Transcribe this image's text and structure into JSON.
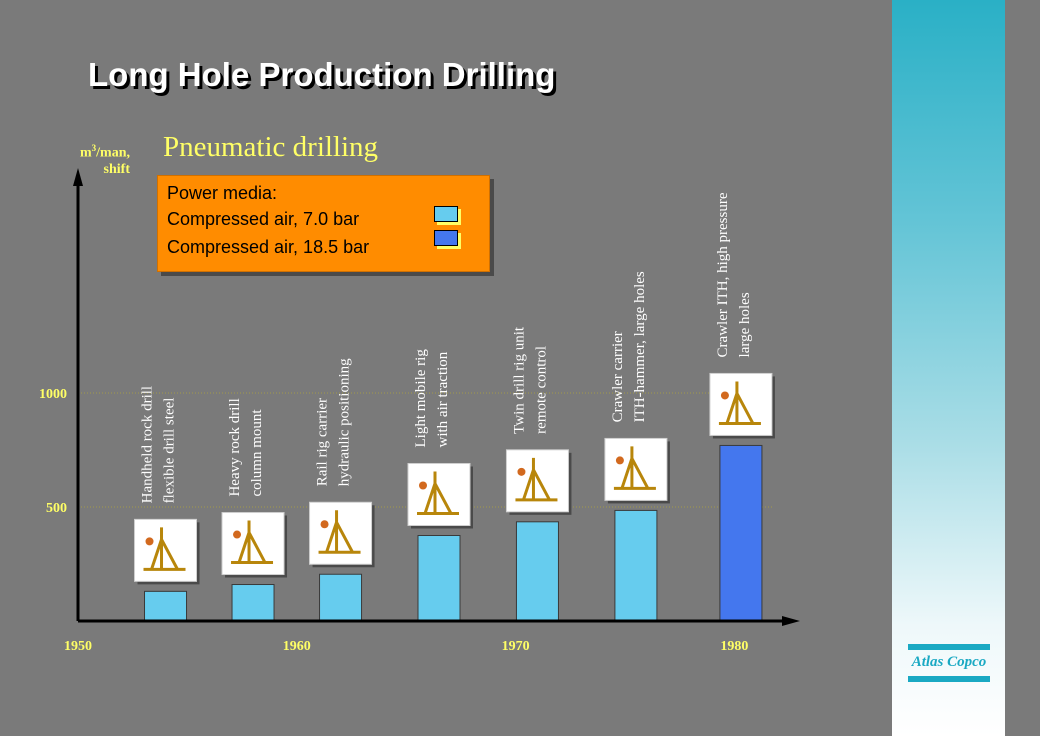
{
  "title": "Long Hole Production Drilling",
  "subtitle": "Pneumatic drilling",
  "legend": {
    "heading": "Power media:",
    "items": [
      {
        "label": "Compressed air, 7.0 bar",
        "color": "#66ccee"
      },
      {
        "label": "Compressed air, 18.5 bar",
        "color": "#4477ee"
      }
    ]
  },
  "logo": {
    "text": "Atlas Copco",
    "color": "#1aa9c3"
  },
  "chart_data": {
    "type": "bar",
    "ylabel_base": "m",
    "ylabel_sup": "3",
    "ylabel_rest": "/man,",
    "ylabel_line2": "shift",
    "xlim": [
      1950,
      1983
    ],
    "ylim": [
      0,
      2000
    ],
    "x_ticks": [
      "1950",
      "1960",
      "1970",
      "1980"
    ],
    "y_ticks": [
      "500",
      "1000"
    ],
    "gridlines": [
      500,
      1000
    ],
    "series": [
      {
        "name": "Compressed air, 7.0 bar",
        "color": "#66ccee",
        "points": [
          {
            "x": 1954,
            "value": 130,
            "label": [
              "Handheld rock drill",
              "flexible drill steel"
            ]
          },
          {
            "x": 1958,
            "value": 160,
            "label": [
              "Heavy rock drill",
              "column mount"
            ]
          },
          {
            "x": 1962,
            "value": 205,
            "label": [
              "Rail rig carrier",
              "hydraulic positioning"
            ]
          },
          {
            "x": 1966.5,
            "value": 375,
            "label": [
              "Light mobile rig",
              "with air traction"
            ]
          },
          {
            "x": 1971,
            "value": 435,
            "label": [
              "Twin drill rig unit",
              "remote control"
            ]
          },
          {
            "x": 1975.5,
            "value": 485,
            "label": [
              "Crawler carrier",
              "ITH-hammer, large holes"
            ]
          }
        ]
      },
      {
        "name": "Compressed air, 18.5 bar",
        "color": "#4477ee",
        "points": [
          {
            "x": 1980.3,
            "value": 770,
            "label": [
              "Crawler ITH,  high pressure",
              "large holes"
            ]
          }
        ]
      }
    ]
  }
}
